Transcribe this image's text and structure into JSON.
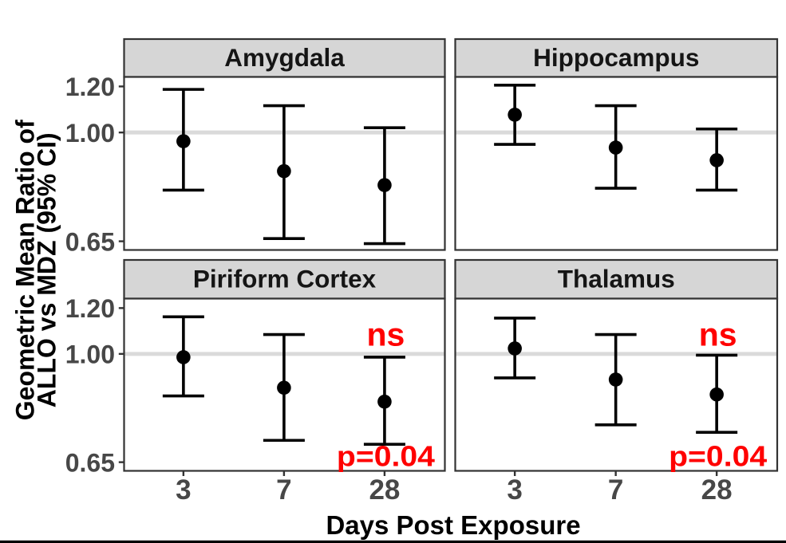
{
  "chart_data": {
    "type": "pointrange",
    "description": "Faceted point-range plot of geometric mean ratios with 95% confidence intervals",
    "x": [
      "3",
      "7",
      "28"
    ],
    "xlabel": "Days Post Exposure",
    "ylabel_lines": [
      "Geometric Mean Ratio of",
      "ALLO vs MDZ (95% CI)"
    ],
    "y_scale": "log10",
    "y_ticks": [
      "1.20",
      "1.00",
      "0.65"
    ],
    "y_tick_values": [
      1.2,
      1.0,
      0.65
    ],
    "ylim": [
      0.628,
      1.246
    ],
    "reference_line": 1.0,
    "grid": "off",
    "legend": "none",
    "facets": [
      {
        "label": "Amygdala",
        "row": 0,
        "col": 0,
        "points": [
          {
            "x": "3",
            "y": 0.966,
            "lo": 0.796,
            "hi": 1.186
          },
          {
            "x": "7",
            "y": 0.858,
            "lo": 0.657,
            "hi": 1.112
          },
          {
            "x": "28",
            "y": 0.812,
            "lo": 0.644,
            "hi": 1.019
          }
        ],
        "annotations": []
      },
      {
        "label": "Hippocampus",
        "row": 0,
        "col": 1,
        "points": [
          {
            "x": "3",
            "y": 1.073,
            "lo": 0.954,
            "hi": 1.206
          },
          {
            "x": "7",
            "y": 0.942,
            "lo": 0.802,
            "hi": 1.112
          },
          {
            "x": "28",
            "y": 0.896,
            "lo": 0.796,
            "hi": 1.014
          }
        ],
        "annotations": []
      },
      {
        "label": "Piriform Cortex",
        "row": 1,
        "col": 0,
        "points": [
          {
            "x": "3",
            "y": 0.987,
            "lo": 0.846,
            "hi": 1.159
          },
          {
            "x": "7",
            "y": 0.874,
            "lo": 0.709,
            "hi": 1.08
          },
          {
            "x": "28",
            "y": 0.827,
            "lo": 0.698,
            "hi": 0.987
          }
        ],
        "annotations": [
          {
            "text": "ns",
            "x": "28",
            "pos": "above"
          },
          {
            "text": "p=0.04",
            "x": "28",
            "pos": "below"
          }
        ]
      },
      {
        "label": "Thalamus",
        "row": 1,
        "col": 1,
        "points": [
          {
            "x": "3",
            "y": 1.022,
            "lo": 0.909,
            "hi": 1.153
          },
          {
            "x": "7",
            "y": 0.903,
            "lo": 0.754,
            "hi": 1.08
          },
          {
            "x": "28",
            "y": 0.851,
            "lo": 0.732,
            "hi": 0.995
          }
        ],
        "annotations": [
          {
            "text": "ns",
            "x": "28",
            "pos": "above"
          },
          {
            "text": "p=0.04",
            "x": "28",
            "pos": "below"
          }
        ]
      }
    ],
    "colors": {
      "point": "#000000",
      "error_bar": "#000000",
      "annotation": "#FF0000",
      "strip_fill": "#D6D6D6",
      "panel_fill": "#FFFFFF",
      "reference_line": "#DADADA",
      "border": "#333333",
      "tick_text": "#474747",
      "strip_text": "#151515",
      "axis_title": "#000000",
      "bottom_bar": "#000000",
      "background": "#FFFFFF"
    }
  }
}
